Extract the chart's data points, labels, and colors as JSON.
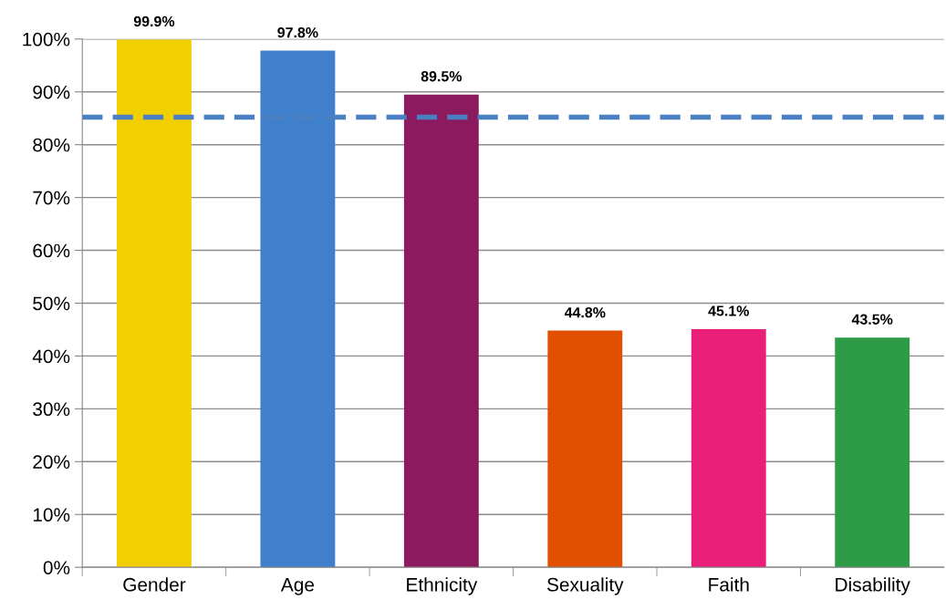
{
  "chart_data": {
    "type": "bar",
    "categories": [
      "Gender",
      "Age",
      "Ethnicity",
      "Sexuality",
      "Faith",
      "Disability"
    ],
    "values": [
      99.9,
      97.8,
      89.5,
      44.8,
      45.1,
      43.5
    ],
    "colors": [
      "#f2cf00",
      "#3f7fcc",
      "#8b1a5f",
      "#e05000",
      "#e91e78",
      "#2e9b46"
    ],
    "value_labels": [
      "99.9%",
      "97.8%",
      "89.5%",
      "44.8%",
      "45.1%",
      "43.5%"
    ],
    "ylim": [
      0,
      100
    ],
    "yticks": [
      {
        "value": 0,
        "label": "0%"
      },
      {
        "value": 10,
        "label": "10%"
      },
      {
        "value": 20,
        "label": "20%"
      },
      {
        "value": 30,
        "label": "30%"
      },
      {
        "value": 40,
        "label": "40%"
      },
      {
        "value": 50,
        "label": "50%"
      },
      {
        "value": 60,
        "label": "60%"
      },
      {
        "value": 70,
        "label": "70%"
      },
      {
        "value": 80,
        "label": "80%"
      },
      {
        "value": 90,
        "label": "90%"
      },
      {
        "value": 100,
        "label": "100%"
      }
    ],
    "ref_lines": [
      {
        "axis": "y",
        "value": 85.2,
        "color": "#4a7fc1",
        "line_style": "dashed"
      }
    ],
    "grid": "y",
    "legend": false
  }
}
